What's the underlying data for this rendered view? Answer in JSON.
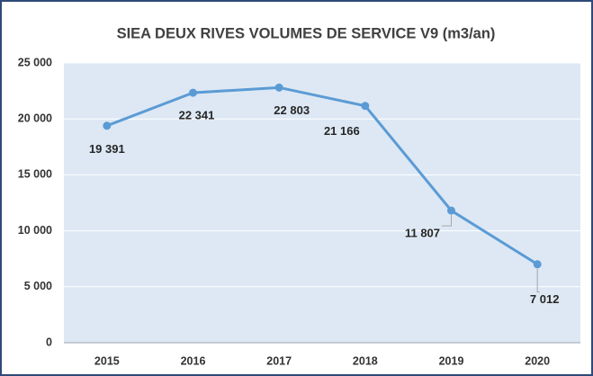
{
  "chart_data": {
    "type": "line",
    "title": "SIEA DEUX RIVES VOLUMES DE SERVICE V9 (m3/an)",
    "categories": [
      "2015",
      "2016",
      "2017",
      "2018",
      "2019",
      "2020"
    ],
    "series": [
      {
        "name": "Volumes de service V9",
        "color": "#5b9bd5",
        "values": [
          19391,
          22341,
          22803,
          21166,
          11807,
          7012
        ],
        "value_labels": [
          "19 391",
          "22 341",
          "22 803",
          "21 166",
          "11 807",
          "7 012"
        ]
      }
    ],
    "ylim": [
      0,
      25000
    ],
    "yticks": [
      {
        "value": 0,
        "label": "0"
      },
      {
        "value": 5000,
        "label": "5 000"
      },
      {
        "value": 10000,
        "label": "10 000"
      },
      {
        "value": 15000,
        "label": "15 000"
      },
      {
        "value": 20000,
        "label": "20 000"
      },
      {
        "value": 25000,
        "label": "25 000"
      }
    ],
    "grid": true
  }
}
